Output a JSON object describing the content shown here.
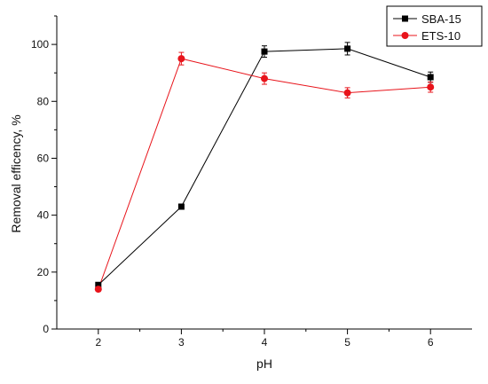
{
  "chart_data": {
    "type": "line",
    "title": "",
    "xlabel": "pH",
    "ylabel": "Removal efficency, %",
    "x": [
      2,
      3,
      4,
      5,
      6
    ],
    "xlim": [
      1.5,
      6.5
    ],
    "ylim": [
      0,
      110
    ],
    "xticks": [
      "2",
      "3",
      "4",
      "5",
      "6"
    ],
    "yticks": [
      "0",
      "20",
      "40",
      "60",
      "80",
      "100"
    ],
    "grid": false,
    "legend_position": "top-right",
    "series": [
      {
        "name": "SBA-15",
        "color": "#000000",
        "marker": "square",
        "values": [
          15.5,
          43,
          97.5,
          98.5,
          88.5
        ],
        "errors": [
          0.8,
          0.8,
          2,
          2.2,
          1.8
        ]
      },
      {
        "name": "ETS-10",
        "color": "#e8141b",
        "marker": "circle",
        "values": [
          14,
          95,
          88,
          83,
          85
        ],
        "errors": [
          0.8,
          2.2,
          2,
          1.8,
          1.8
        ]
      }
    ]
  }
}
